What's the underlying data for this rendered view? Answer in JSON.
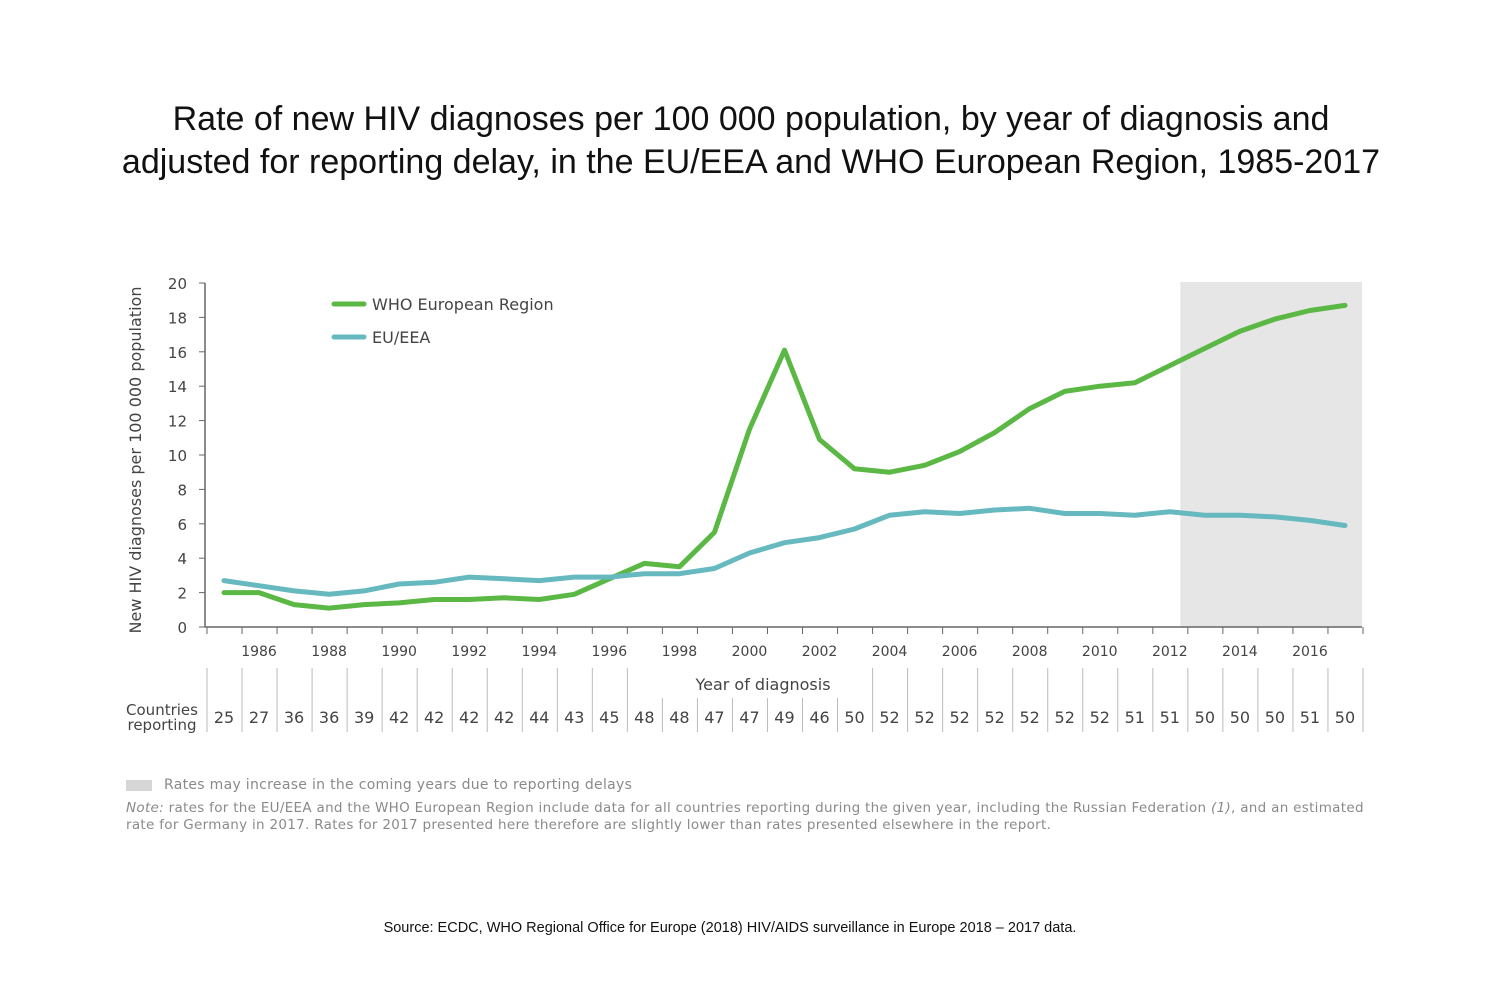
{
  "title": {
    "line1": "Rate of new HIV diagnoses per 100 000 population, by year of diagnosis and",
    "line2": "adjusted for reporting delay, in the EU/EEA and WHO European Region, 1985-2017"
  },
  "chart_data": {
    "type": "line",
    "title": "Rate of new HIV diagnoses per 100 000 population, by year of diagnosis and adjusted for reporting delay, in the EU/EEA and WHO European Region, 1985-2017",
    "xlabel": "Year of diagnosis",
    "ylabel": "New HIV diagnoses per 100 000 population",
    "x": [
      1985,
      1986,
      1987,
      1988,
      1989,
      1990,
      1991,
      1992,
      1993,
      1994,
      1995,
      1996,
      1997,
      1998,
      1999,
      2000,
      2001,
      2002,
      2003,
      2004,
      2005,
      2006,
      2007,
      2008,
      2009,
      2010,
      2011,
      2012,
      2013,
      2014,
      2015,
      2016,
      2017
    ],
    "xticks": [
      "1986",
      "1988",
      "1990",
      "1992",
      "1994",
      "1996",
      "1998",
      "2000",
      "2002",
      "2004",
      "2006",
      "2008",
      "2010",
      "2012",
      "2014",
      "2016"
    ],
    "ylim": [
      0,
      20
    ],
    "yticks": [
      "0",
      "2",
      "4",
      "6",
      "8",
      "10",
      "12",
      "14",
      "16",
      "18",
      "20"
    ],
    "grid": false,
    "legend_position": "top-left",
    "series": [
      {
        "name": "WHO European Region",
        "color": "#5bb845",
        "values": [
          2.0,
          2.0,
          1.3,
          1.1,
          1.3,
          1.4,
          1.6,
          1.6,
          1.7,
          1.6,
          1.9,
          2.8,
          3.7,
          3.5,
          5.5,
          11.5,
          16.1,
          10.9,
          9.2,
          9.0,
          9.4,
          10.2,
          11.3,
          12.7,
          13.7,
          14.0,
          14.2,
          15.2,
          16.2,
          17.2,
          17.9,
          18.4,
          18.7
        ]
      },
      {
        "name": "EU/EEA",
        "color": "#66b9bf",
        "values": [
          2.7,
          2.4,
          2.1,
          1.9,
          2.1,
          2.5,
          2.6,
          2.9,
          2.8,
          2.7,
          2.9,
          2.9,
          3.1,
          3.1,
          3.4,
          4.3,
          4.9,
          5.2,
          5.7,
          6.5,
          6.7,
          6.6,
          6.8,
          6.9,
          6.6,
          6.6,
          6.5,
          6.7,
          6.5,
          6.5,
          6.4,
          6.2,
          5.9
        ]
      }
    ],
    "shaded_region": {
      "from_year": 2012.3,
      "to_year": 2017.5,
      "color": "#e6e6e6",
      "label": "Rates may increase in the coming years due to reporting delays"
    },
    "countries_reporting": {
      "label_line1": "Countries",
      "label_line2": "reporting",
      "values": [
        "25",
        "27",
        "36",
        "36",
        "39",
        "42",
        "42",
        "42",
        "42",
        "44",
        "43",
        "45",
        "48",
        "48",
        "47",
        "47",
        "49",
        "46",
        "50",
        "52",
        "52",
        "52",
        "52",
        "52",
        "52",
        "52",
        "51",
        "51",
        "50",
        "50",
        "50",
        "51",
        "50"
      ]
    }
  },
  "note": {
    "prefix": "Note:",
    "text": " rates for the EU/EEA and the WHO European Region include data for all countries reporting during the given year, including the Russian Federation ",
    "ref": "(1)",
    "text2": ", and an estimated rate for Germany in 2017. Rates for 2017 presented here therefore are slightly lower than rates presented elsewhere in the report."
  },
  "source": "Source: ECDC, WHO Regional Office for Europe (2018) HIV/AIDS surveillance in Europe 2018 – 2017 data."
}
